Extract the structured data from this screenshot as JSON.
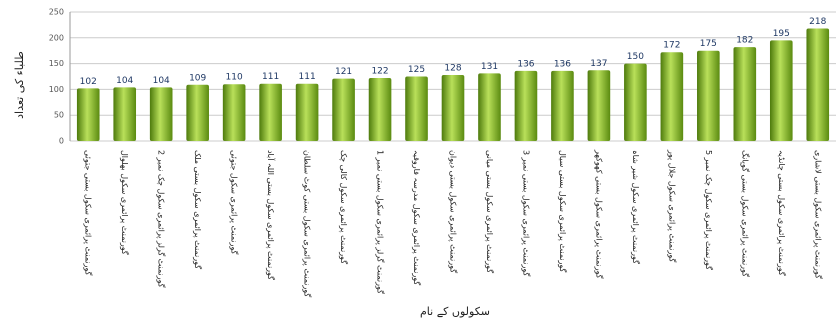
{
  "chart_data": {
    "type": "bar",
    "y_label": "طلباء کی تعداد",
    "x_label": "سکولوں کے نام",
    "categories": [
      "گورنمنٹ پرائمری سکول بستی جتوئی",
      "گورنمنٹ پرائمری سکول بھلوال",
      "گورنمنٹ گرلز پرائمری سکول چک نمبر 2",
      "گورنمنٹ پرائمری سکول بستی ملک",
      "گورنمنٹ پرائمری سکول جتوئی",
      "گورنمنٹ پرائمری سکول بستی اللہ آباد",
      "گورنمنٹ پرائمری سکول بستی کوٹ سلطان",
      "گورنمنٹ پرائمری سکول کالی چک",
      "گورنمنٹ گرلز پرائمری سکول بستی نمبر 1",
      "گورنمنٹ پرائمری سکول مدرسہ فاروقیہ",
      "گورنمنٹ پرائمری سکول بستی دیوان",
      "گورنمنٹ پرائمری سکول بستی میانی",
      "گورنمنٹ پرائمری سکول بستی نمبر 3",
      "گورنمنٹ پرائمری سکول بستی سیال",
      "گورنمنٹ پرائمری سکول بستی کھوکھر",
      "گورنمنٹ پرائمری سکول شیر شاہ",
      "گورنمنٹ پرائمری سکول جلال پور",
      "گورنمنٹ پرائمری سکول چک نمبر 5",
      "گورنمنٹ پرائمری سکول بستی گوپانگ",
      "گورنمنٹ پرائمری سکول بستی چانڈیہ",
      "گورنمنٹ پرائمری سکول بستی لاشاری"
    ],
    "values": [
      102,
      104,
      104,
      109,
      110,
      111,
      111,
      121,
      122,
      125,
      128,
      131,
      136,
      136,
      137,
      150,
      172,
      175,
      182,
      195,
      218
    ],
    "color": "#7ab317",
    "ylim": [
      0,
      250
    ],
    "yticks": [
      0,
      50,
      100,
      150,
      200,
      250
    ],
    "grid": true
  }
}
